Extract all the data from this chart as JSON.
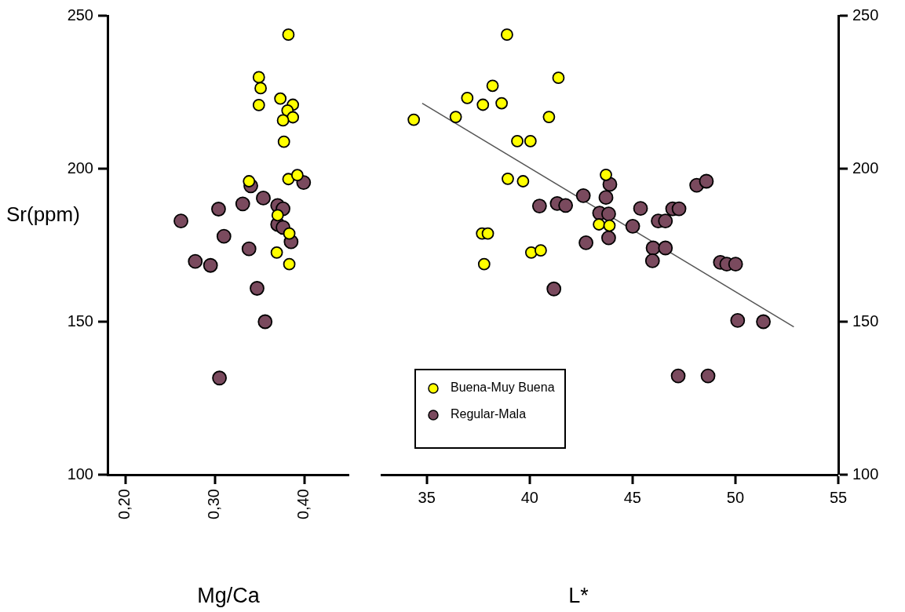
{
  "chart_data": [
    {
      "type": "scatter",
      "xlabel": "Mg/Ca",
      "ylabel": "Sr(ppm)",
      "xlim": [
        0.18,
        0.45
      ],
      "xticks": [
        {
          "value": 0.2,
          "label": "0,20"
        },
        {
          "value": 0.3,
          "label": "0,30"
        },
        {
          "value": 0.4,
          "label": "0,40"
        }
      ],
      "ylim": [
        100,
        250
      ],
      "yticks": [
        100,
        150,
        200,
        250
      ],
      "grid": false,
      "legend": false,
      "marker": "circle",
      "series": [
        {
          "color": "#ffff00",
          "x": [
            0.382,
            0.349,
            0.351,
            0.349,
            0.373,
            0.387,
            0.381,
            0.387,
            0.376,
            0.377,
            0.338,
            0.382,
            0.392,
            0.37,
            0.383,
            0.369,
            0.383
          ],
          "values": [
            243.8,
            229.9,
            226.3,
            220.8,
            222.9,
            220.9,
            219.0,
            216.8,
            215.8,
            208.8,
            195.9,
            196.6,
            197.9,
            184.8,
            178.8,
            172.6,
            168.8
          ]
        },
        {
          "color": "#7a4a5e",
          "x": [
            0.34,
            0.399,
            0.354,
            0.331,
            0.304,
            0.37,
            0.376,
            0.262,
            0.37,
            0.376,
            0.385,
            0.31,
            0.338,
            0.278,
            0.295,
            0.347,
            0.356,
            0.305
          ],
          "values": [
            194.4,
            195.5,
            190.4,
            188.5,
            186.8,
            188.0,
            186.9,
            182.9,
            181.8,
            180.8,
            176.1,
            177.9,
            173.8,
            169.7,
            168.4,
            160.9,
            150.0,
            131.6
          ]
        }
      ]
    },
    {
      "type": "scatter",
      "xlabel": "L*",
      "xlim": [
        32.8,
        55
      ],
      "xticks": [
        35,
        40,
        45,
        50,
        55
      ],
      "y2lim": [
        100,
        250
      ],
      "y2ticks": [
        100,
        150,
        200,
        250
      ],
      "grid": false,
      "legend": "bottom left",
      "marker": "circle",
      "series": [
        {
          "name": "Buena-Muy Buena",
          "color": "#ffff00",
          "axis": "y2",
          "x": [
            38.9,
            34.37,
            38.2,
            36.97,
            37.73,
            38.64,
            36.41,
            41.4,
            40.94,
            39.4,
            40.04,
            38.94,
            39.68,
            43.71,
            37.69,
            37.97,
            37.79,
            40.08,
            40.54,
            43.37,
            43.88
          ],
          "values": [
            243.8,
            216.0,
            227.1,
            223.1,
            220.9,
            221.4,
            216.9,
            229.7,
            216.9,
            209.0,
            209.0,
            196.7,
            195.9,
            198.0,
            178.8,
            178.8,
            168.8,
            172.6,
            173.3,
            181.8,
            181.4
          ]
        },
        {
          "name": "Regular-Mala",
          "color": "#7a4a5e",
          "axis": "y2",
          "x": [
            43.9,
            43.71,
            42.61,
            40.48,
            41.34,
            41.75,
            43.4,
            43.84,
            43.84,
            42.74,
            41.18,
            45.39,
            45.01,
            46.25,
            46.6,
            46.95,
            47.26,
            46.0,
            46.6,
            45.97,
            48.12,
            48.59,
            49.27,
            49.58,
            50.01,
            50.11,
            51.36,
            47.22,
            48.67
          ],
          "values": [
            194.9,
            190.6,
            191.2,
            187.8,
            188.6,
            188.0,
            185.5,
            185.2,
            177.4,
            175.8,
            160.7,
            187.0,
            181.2,
            182.9,
            182.9,
            186.9,
            186.9,
            174.1,
            174.1,
            169.9,
            194.6,
            195.9,
            169.4,
            168.8,
            168.8,
            150.4,
            150.0,
            132.3,
            132.3
          ]
        },
        {
          "type": "line",
          "color": "#555555",
          "axis": "y2",
          "marker": "none",
          "line_style": "solid",
          "x": [
            34.78,
            52.84
          ],
          "values": [
            221.4,
            148.3
          ]
        }
      ]
    }
  ]
}
